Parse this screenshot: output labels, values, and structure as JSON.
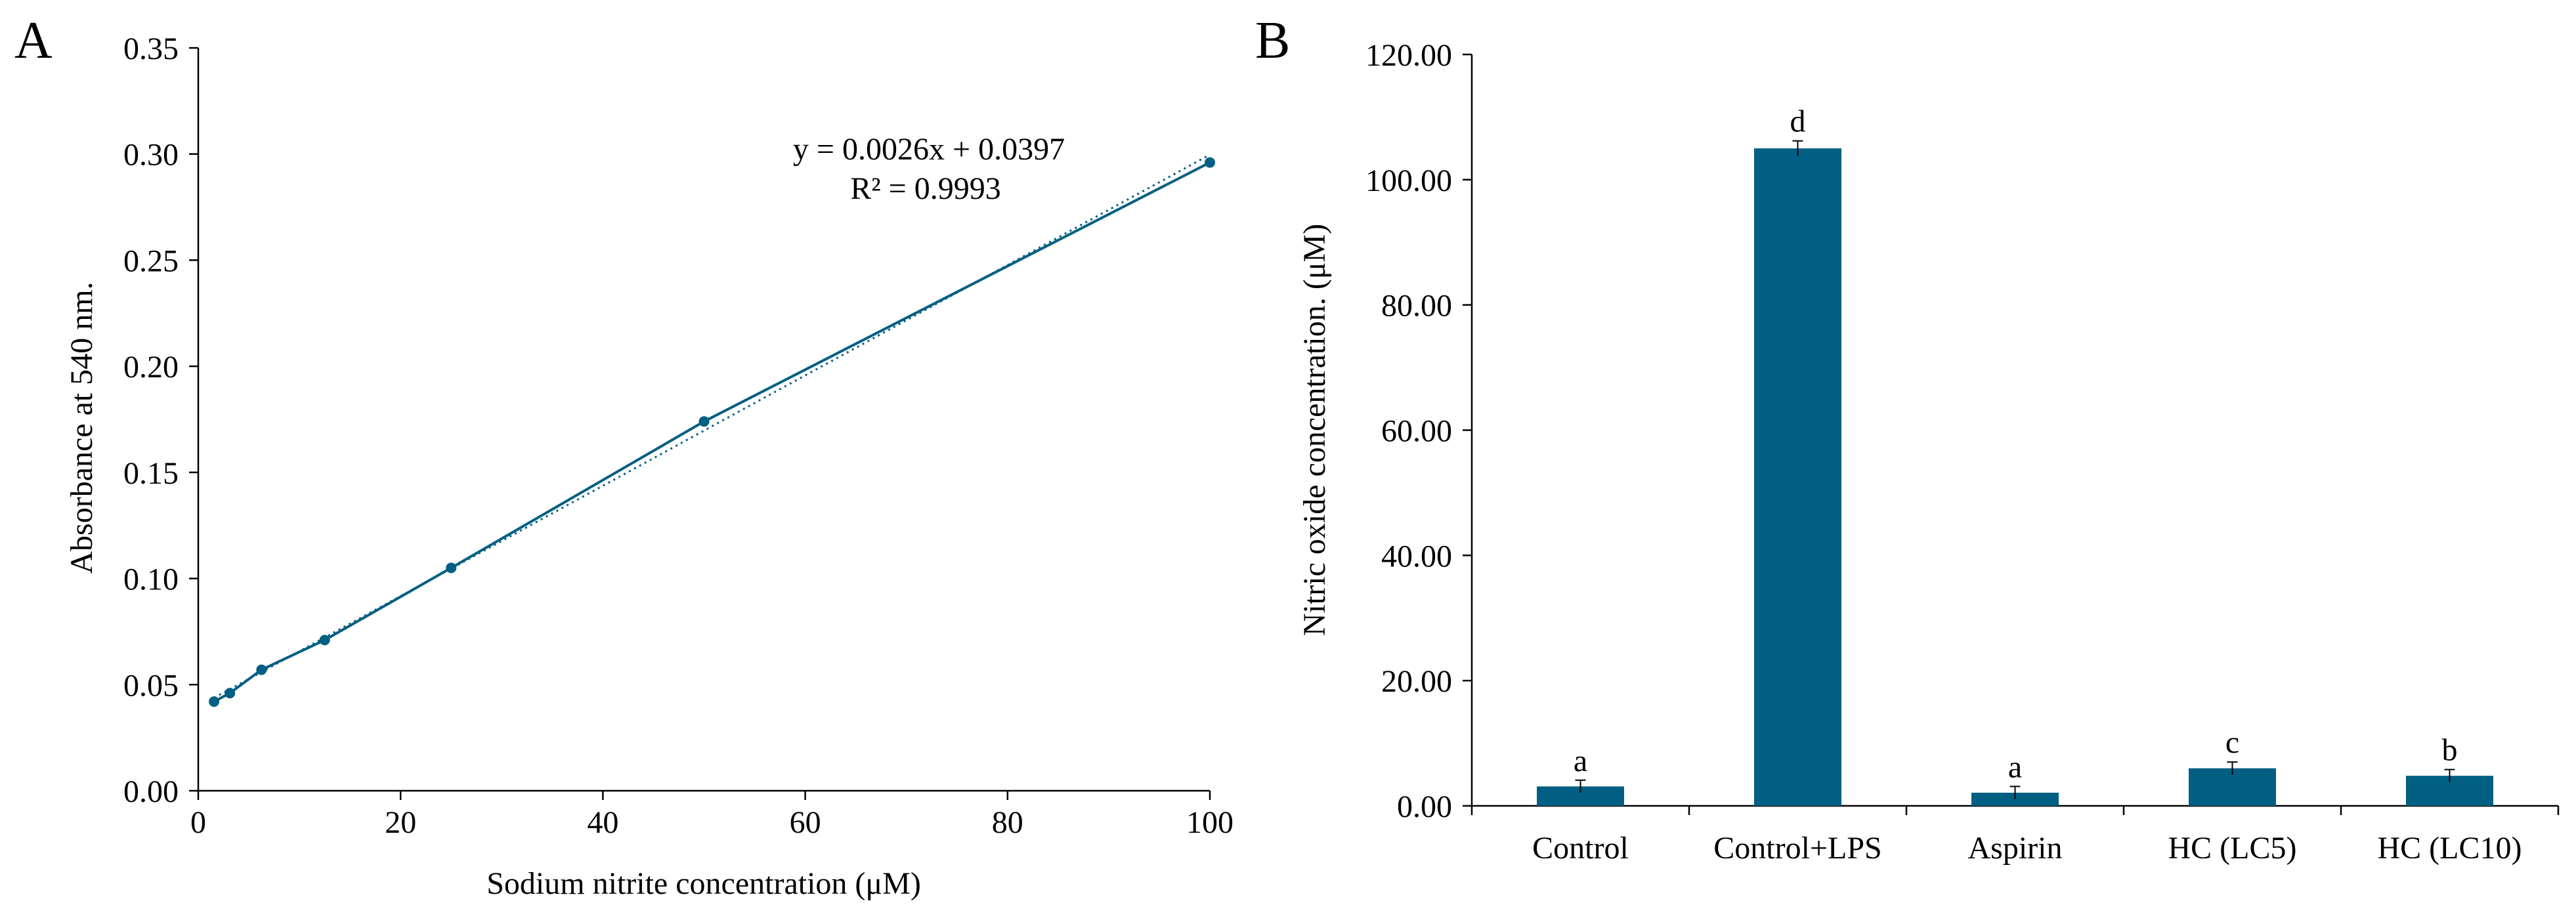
{
  "colors": {
    "series": "#005F82",
    "axis": "#000000"
  },
  "chart_data": [
    {
      "panel": "A",
      "type": "scatter",
      "title": "",
      "xlabel": "Sodium nitrite concentration (μM)",
      "ylabel": "Absorbance at 540 nm.",
      "xlim": [
        0,
        100
      ],
      "ylim": [
        0,
        0.35
      ],
      "xticks": [
        "0",
        "20",
        "40",
        "60",
        "80",
        "100"
      ],
      "yticks": [
        "0.00",
        "0.05",
        "0.10",
        "0.15",
        "0.20",
        "0.25",
        "0.30",
        "0.35"
      ],
      "x": [
        1.5625,
        3.125,
        6.25,
        12.5,
        25,
        50,
        100
      ],
      "y": [
        0.042,
        0.046,
        0.057,
        0.071,
        0.105,
        0.174,
        0.296
      ],
      "connected": true,
      "trendline": {
        "slope": 0.0026,
        "intercept": 0.0397,
        "style": "dotted"
      },
      "equation": "y = 0.0026x + 0.0397",
      "r2": "R² = 0.9993"
    },
    {
      "panel": "B",
      "type": "bar",
      "title": "",
      "xlabel": "",
      "ylabel": "Nitric oxide concentration. (μM)",
      "ylim": [
        0,
        120
      ],
      "yticks": [
        "0.00",
        "20.00",
        "40.00",
        "60.00",
        "80.00",
        "100.00",
        "120.00"
      ],
      "categories": [
        "Control",
        "Control+LPS",
        "Aspirin",
        "HC (LC5)",
        "HC (LC10)"
      ],
      "values": [
        3.1,
        105.0,
        2.1,
        6.0,
        4.8
      ],
      "errors": [
        1.0,
        1.2,
        1.0,
        1.0,
        1.0
      ],
      "letters": [
        "a",
        "d",
        "a",
        "c",
        "b"
      ]
    }
  ]
}
